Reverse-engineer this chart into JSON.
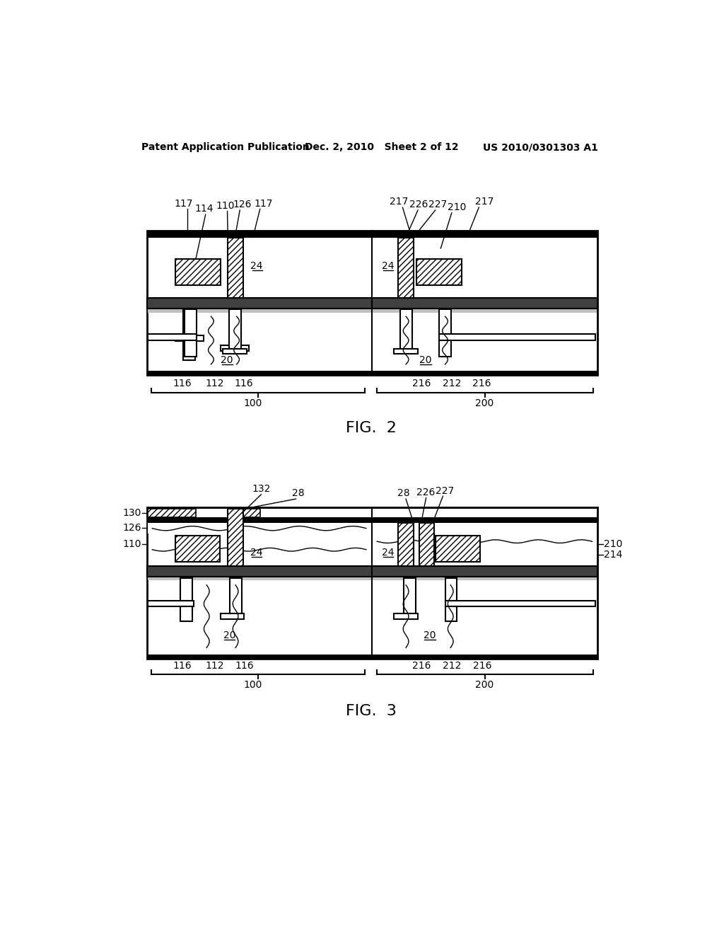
{
  "bg_color": "#ffffff",
  "header_left": "Patent Application Publication",
  "header_mid": "Dec. 2, 2010   Sheet 2 of 12",
  "header_right": "US 2010/0301303 A1",
  "fig2_caption": "FIG.  2",
  "fig3_caption": "FIG.  3"
}
